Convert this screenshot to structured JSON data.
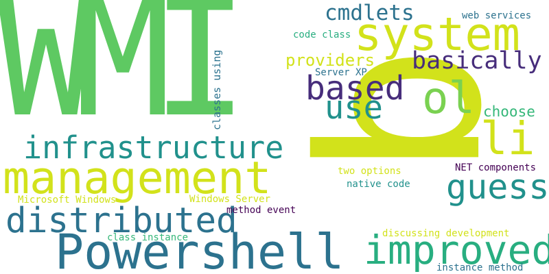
{
  "palette": {
    "green": "#5ec962",
    "yellow_green": "#d2e21b",
    "teal": "#21918c",
    "blue": "#2c728e",
    "light_green": "#7ad151",
    "purple": "#472d7b",
    "dark_purple": "#440154",
    "sea_green": "#28ae80",
    "mint": "#35b779"
  },
  "words": {
    "wmi": "WMI",
    "q": "q",
    "system": "system",
    "management": "management",
    "powershell": "Powershell",
    "infrastructure": "infrastructure",
    "distributed": "distributed",
    "improved": "improved",
    "based": "based",
    "guess": "guess",
    "li": "li",
    "ol": "ol",
    "use": "use",
    "cmdlets": "cmdlets",
    "basically": "basically",
    "providers": "providers",
    "choose": "choose",
    "web_services": "web services",
    "code_class": "code class",
    "server_xp": "Server XP",
    "classes_using": "classes using",
    "net_components": "NET components",
    "two_options": "two options",
    "native_code": "native code",
    "microsoft_windows": "Microsoft Windows",
    "windows_server": "Windows Server",
    "method_event": "method event",
    "class_instance": "class instance",
    "discussing_development": "discussing development",
    "instance_method": "instance method"
  }
}
